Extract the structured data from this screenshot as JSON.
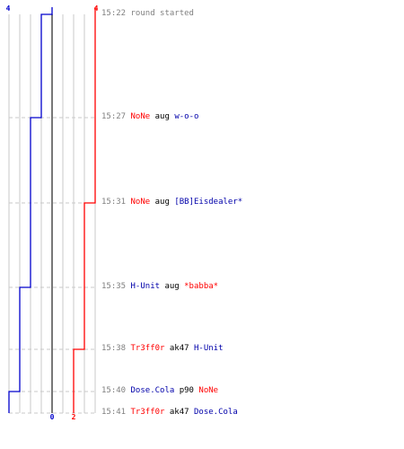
{
  "round_log": {
    "header": {
      "blue_start_count": "4",
      "red_start_count": "4",
      "blue_end_count": "0",
      "red_end_count": "2"
    },
    "events": [
      {
        "time": "15:22",
        "text": "round started",
        "kind": "info"
      },
      {
        "time": "15:27",
        "attacker": "NoNe",
        "attacker_team": "red",
        "weapon": "aug",
        "victim": "w-o-o",
        "victim_team": "blue"
      },
      {
        "time": "15:31",
        "attacker": "NoNe",
        "attacker_team": "red",
        "weapon": "aug",
        "victim": "[BB]Eisdealer*",
        "victim_team": "blue"
      },
      {
        "time": "15:35",
        "attacker": "H-Unit",
        "attacker_team": "blue",
        "weapon": "aug",
        "victim": "*babba*",
        "victim_team": "red"
      },
      {
        "time": "15:38",
        "attacker": "Tr3ff0r",
        "attacker_team": "red",
        "weapon": "ak47",
        "victim": "H-Unit",
        "victim_team": "blue"
      },
      {
        "time": "15:40",
        "attacker": "Dose.Cola",
        "attacker_team": "blue",
        "weapon": "p90",
        "victim": "NoNe",
        "victim_team": "red"
      },
      {
        "time": "15:41",
        "attacker": "Tr3ff0r",
        "attacker_team": "red",
        "weapon": "ak47",
        "victim": "Dose.Cola",
        "victim_team": "blue"
      }
    ]
  },
  "chart_data": {
    "type": "line",
    "xlim": [
      0,
      8
    ],
    "grid": true,
    "series": [
      {
        "color": "#0000cc",
        "values": [
          4,
          3,
          2,
          2,
          1,
          1,
          0
        ]
      },
      {
        "color": "#ff0000",
        "values": [
          4,
          4,
          4,
          3,
          3,
          2,
          2
        ]
      }
    ],
    "event_times": [
      "15:22",
      "15:27",
      "15:31",
      "15:35",
      "15:38",
      "15:40",
      "15:41"
    ]
  }
}
